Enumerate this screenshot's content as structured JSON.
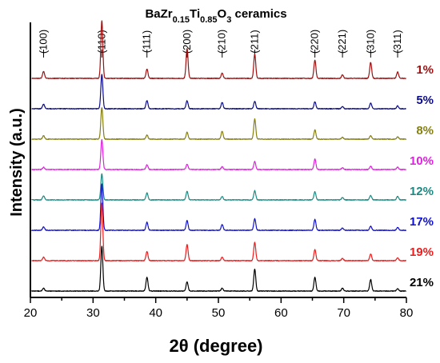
{
  "chart_data": {
    "type": "line",
    "title_parts": [
      {
        "t": "BaZr",
        "sub": false
      },
      {
        "t": "0.15",
        "sub": true
      },
      {
        "t": "Ti",
        "sub": false
      },
      {
        "t": "0.85",
        "sub": true
      },
      {
        "t": "O",
        "sub": false
      },
      {
        "t": "3",
        "sub": true
      },
      {
        "t": " ceramics",
        "sub": false
      }
    ],
    "xlabel": "2θ (degree)",
    "ylabel": "Intensity (a.u.)",
    "xlim": [
      20,
      80
    ],
    "x_ticks": [
      20,
      30,
      40,
      50,
      60,
      70,
      80
    ],
    "grid": false,
    "legend": "labels at right end of each trace",
    "reflections": [
      {
        "hkl": "(100)",
        "two_theta": 22.1
      },
      {
        "hkl": "(110)",
        "two_theta": 31.4
      },
      {
        "hkl": "(111)",
        "two_theta": 38.6
      },
      {
        "hkl": "(200)",
        "two_theta": 45.0
      },
      {
        "hkl": "(210)",
        "two_theta": 50.6
      },
      {
        "hkl": "(211)",
        "two_theta": 55.8
      },
      {
        "hkl": "(220)",
        "two_theta": 65.4
      },
      {
        "hkl": "(221)",
        "two_theta": 69.8
      },
      {
        "hkl": "(310)",
        "two_theta": 74.3
      },
      {
        "hkl": "(311)",
        "two_theta": 78.6
      }
    ],
    "series": [
      {
        "name": "1%",
        "color": "#a01010",
        "peaks": [
          0.12,
          1.0,
          0.16,
          0.52,
          0.09,
          0.42,
          0.32,
          0.06,
          0.28,
          0.11
        ]
      },
      {
        "name": "5%",
        "color": "#0b0b8a",
        "peaks": [
          0.08,
          0.6,
          0.14,
          0.14,
          0.11,
          0.13,
          0.12,
          0.04,
          0.1,
          0.05
        ]
      },
      {
        "name": "8%",
        "color": "#858011",
        "peaks": [
          0.06,
          0.55,
          0.07,
          0.12,
          0.14,
          0.35,
          0.16,
          0.03,
          0.06,
          0.04
        ]
      },
      {
        "name": "10%",
        "color": "#e020e0",
        "peaks": [
          0.04,
          0.52,
          0.08,
          0.09,
          0.05,
          0.14,
          0.18,
          0.03,
          0.06,
          0.04
        ]
      },
      {
        "name": "12%",
        "color": "#1a8a82",
        "peaks": [
          0.07,
          0.45,
          0.12,
          0.15,
          0.06,
          0.16,
          0.14,
          0.04,
          0.08,
          0.06
        ]
      },
      {
        "name": "17%",
        "color": "#1010d0",
        "peaks": [
          0.06,
          0.8,
          0.14,
          0.17,
          0.1,
          0.2,
          0.19,
          0.04,
          0.07,
          0.05
        ]
      },
      {
        "name": "19%",
        "color": "#ee1c1c",
        "peaks": [
          0.06,
          1.0,
          0.16,
          0.28,
          0.06,
          0.32,
          0.19,
          0.04,
          0.12,
          0.05
        ]
      },
      {
        "name": "21%",
        "color": "#000000",
        "peaks": [
          0.05,
          0.78,
          0.24,
          0.16,
          0.05,
          0.38,
          0.24,
          0.05,
          0.2,
          0.04
        ]
      }
    ]
  }
}
